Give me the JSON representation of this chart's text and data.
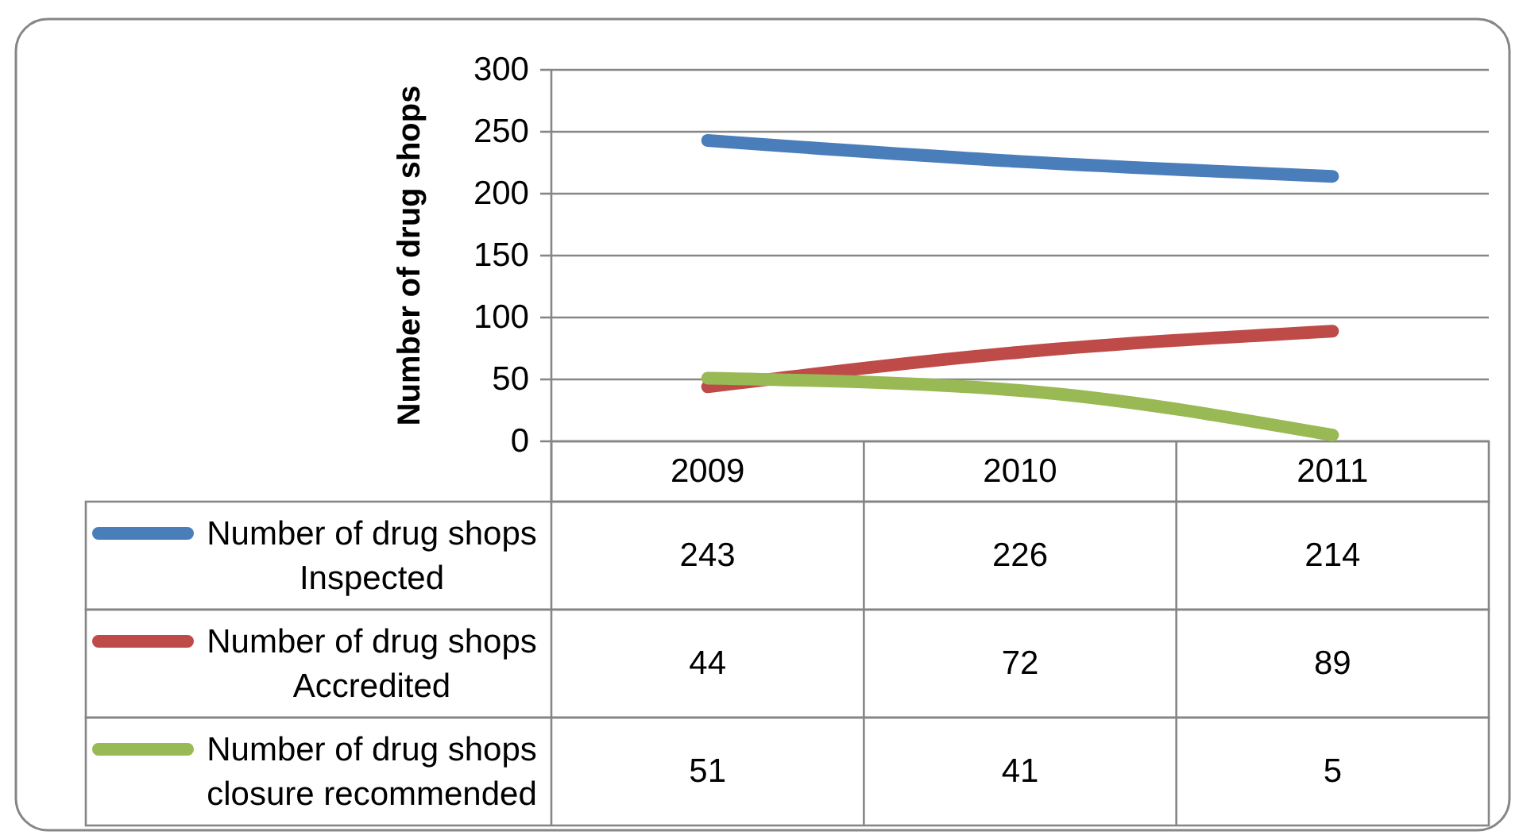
{
  "chart_data": {
    "type": "line",
    "ylabel": "Number of drug shops",
    "categories": [
      "2009",
      "2010",
      "2011"
    ],
    "series": [
      {
        "name": "Number of drug shops Inspected",
        "color": "#4a7ebb",
        "values": [
          243,
          226,
          214
        ]
      },
      {
        "name": "Number of drug shops Accredited",
        "color": "#be4b48",
        "values": [
          44,
          72,
          89
        ]
      },
      {
        "name": "Number of drug shops closure recommended",
        "color": "#98b954",
        "values": [
          51,
          41,
          5
        ]
      }
    ],
    "ylim": [
      0,
      300
    ],
    "yticks": [
      0,
      50,
      100,
      150,
      200,
      250,
      300
    ],
    "grid": "y",
    "legend": "bottom",
    "data_labels": true
  }
}
